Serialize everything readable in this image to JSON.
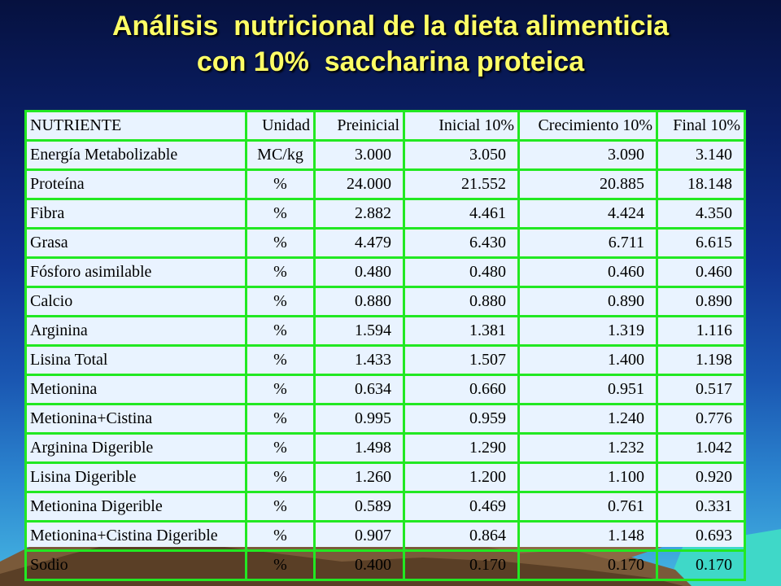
{
  "slide": {
    "title_line1": "Análisis  nutricional de la dieta alimenticia",
    "title_line2": "con 10%  saccharina proteica"
  },
  "table": {
    "headers": [
      "NUTRIENTE",
      "Unidad",
      "Preinicial",
      "Inicial 10%",
      "Crecimiento 10%",
      "Final 10%"
    ],
    "rows": [
      [
        "Energía Metabolizable",
        "MC/kg",
        "3.000",
        "3.050",
        "3.090",
        "3.140"
      ],
      [
        "Proteína",
        "%",
        "24.000",
        "21.552",
        "20.885",
        "18.148"
      ],
      [
        "Fibra",
        "%",
        "2.882",
        "4.461",
        "4.424",
        "4.350"
      ],
      [
        "Grasa",
        "%",
        "4.479",
        "6.430",
        "6.711",
        "6.615"
      ],
      [
        "Fósforo asimilable",
        "%",
        "0.480",
        "0.480",
        "0.460",
        "0.460"
      ],
      [
        "Calcio",
        "%",
        "0.880",
        "0.880",
        "0.890",
        "0.890"
      ],
      [
        "Arginina",
        "%",
        "1.594",
        "1.381",
        "1.319",
        "1.116"
      ],
      [
        "Lisina Total",
        "%",
        "1.433",
        "1.507",
        "1.400",
        "1.198"
      ],
      [
        "Metionina",
        "%",
        "0.634",
        "0.660",
        "0.951",
        "0.517"
      ],
      [
        "Metionina+Cistina",
        "%",
        "0.995",
        "0.959",
        "1.240",
        "0.776"
      ],
      [
        "Arginina Digerible",
        "%",
        "1.498",
        "1.290",
        "1.232",
        "1.042"
      ],
      [
        "Lisina Digerible",
        "%",
        "1.260",
        "1.200",
        "1.100",
        "0.920"
      ],
      [
        "Metionina Digerible",
        "%",
        "0.589",
        "0.469",
        "0.761",
        "0.331"
      ],
      [
        "Metionina+Cistina Digerible",
        "%",
        "0.907",
        "0.864",
        "1.148",
        "0.693"
      ],
      [
        "Sodio",
        "%",
        "0.400",
        "0.170",
        "0.170",
        "0.170"
      ]
    ]
  },
  "colors": {
    "title": "#ffff66",
    "grid": "#22e822",
    "background_top": "#06113f",
    "background_bottom": "#46b7e2",
    "sea": "#3fd8c8",
    "mountain": "#7a5a3a"
  }
}
